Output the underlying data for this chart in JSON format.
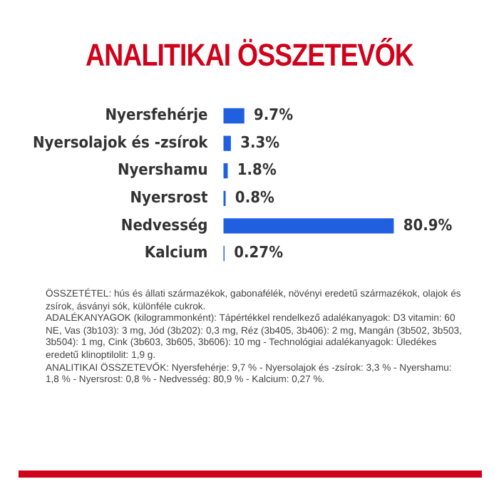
{
  "chart_data": {
    "type": "bar",
    "orientation": "horizontal",
    "title": "ANALITIKAI ÖSSZETEVŐK",
    "categories": [
      "Nyersfehérje",
      "Nyersolajok és -zsírok",
      "Nyershamu",
      "Nyersrost",
      "Nedvesség",
      "Kalcium"
    ],
    "values": [
      9.7,
      3.3,
      1.8,
      0.8,
      80.9,
      0.27
    ],
    "color": "#1f5fe0",
    "value_labels": [
      "9.7%",
      "3.3%",
      "1.8%",
      "0.8%",
      "80.9%",
      "0.27%"
    ],
    "legend": false,
    "tick_labels": "y",
    "annotations": [
      "ÖSSZETÉTEL: hús és állati származékok, gabonafélék, növényi eredetű származékok, olajok és zsírok, ásványi sók, különféle cukrok.",
      "ADALÉKANYAGOK (kilogrammonként): Tápértékkel rendelkező adalékanyagok: D3 vitamin: 60 NE, Vas (3b103): 3 mg, Jód (3b202): 0,3 mg, Réz (3b405, 3b406): 2 mg, Mangán (3b502, 3b503, 3b504): 1 mg, Cink (3b603, 3b605, 3b606): 10 mg - Technológiai adalékanyagok: Üledékes eredetű klinoptilolit: 1,9 g.",
      "ANALITIKAI ÖSSZETEVŐK: Nyersfehérje: 9,7 % - Nyersolajok és -zsírok: 3,3 % - Nyershamu: 1,8 % - Nyersrost: 0,8 % - Nedvesség: 80,9 % - Kalcium: 0,27 %."
    ]
  }
}
